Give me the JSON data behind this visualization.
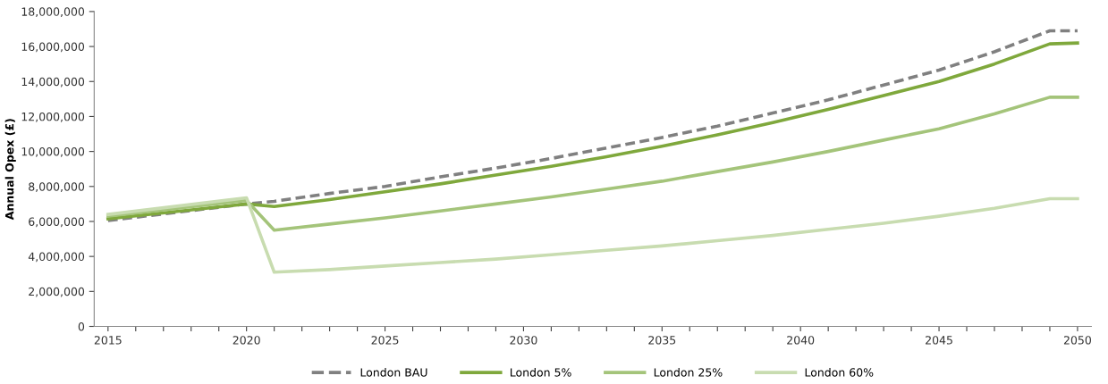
{
  "chart_data": {
    "type": "line",
    "ylabel": "Annual Opex (£)",
    "legend": "bottom",
    "grid": false,
    "marker": "none",
    "xlim": [
      2014.5,
      2050.5
    ],
    "xticks": [
      2015,
      {
        "value": 2016,
        "label": null
      },
      {
        "value": 2017,
        "label": null
      },
      {
        "value": 2018,
        "label": null
      },
      {
        "value": 2019,
        "label": null
      },
      2020,
      {
        "value": 2021,
        "label": null
      },
      {
        "value": 2022,
        "label": null
      },
      {
        "value": 2023,
        "label": null
      },
      {
        "value": 2024,
        "label": null
      },
      2025,
      {
        "value": 2026,
        "label": null
      },
      {
        "value": 2027,
        "label": null
      },
      {
        "value": 2028,
        "label": null
      },
      {
        "value": 2029,
        "label": null
      },
      2030,
      {
        "value": 2031,
        "label": null
      },
      {
        "value": 2032,
        "label": null
      },
      {
        "value": 2033,
        "label": null
      },
      {
        "value": 2034,
        "label": null
      },
      2035,
      {
        "value": 2036,
        "label": null
      },
      {
        "value": 2037,
        "label": null
      },
      {
        "value": 2038,
        "label": null
      },
      {
        "value": 2039,
        "label": null
      },
      2040,
      {
        "value": 2041,
        "label": null
      },
      {
        "value": 2042,
        "label": null
      },
      {
        "value": 2043,
        "label": null
      },
      {
        "value": 2044,
        "label": null
      },
      2045,
      {
        "value": 2046,
        "label": null
      },
      {
        "value": 2047,
        "label": null
      },
      {
        "value": 2048,
        "label": null
      },
      {
        "value": 2049,
        "label": null
      },
      2050
    ],
    "ylim": [
      0,
      18000000
    ],
    "yticks": [
      0,
      {
        "value": 2000000,
        "label": "2,000,000"
      },
      {
        "value": 4000000,
        "label": "4,000,000"
      },
      {
        "value": 6000000,
        "label": "6,000,000"
      },
      {
        "value": 8000000,
        "label": "8,000,000"
      },
      {
        "value": 10000000,
        "label": "10,000,000"
      },
      {
        "value": 12000000,
        "label": "12,000,000"
      },
      {
        "value": 14000000,
        "label": "14,000,000"
      },
      {
        "value": 16000000,
        "label": "16,000,000"
      },
      {
        "value": 18000000,
        "label": "18,000,000"
      }
    ],
    "x": [
      2015,
      2020,
      2021,
      2023,
      2025,
      2027,
      2029,
      2031,
      2033,
      2035,
      2037,
      2039,
      2041,
      2043,
      2045,
      2047,
      2049,
      2050
    ],
    "series": [
      {
        "name": "London BAU",
        "color": "#808080",
        "line_style": "dashed",
        "values": [
          6050000,
          7000000,
          7150000,
          7600000,
          8000000,
          8550000,
          9050000,
          9600000,
          10200000,
          10800000,
          11450000,
          12200000,
          12950000,
          13800000,
          14650000,
          15700000,
          16900000,
          16900000
        ]
      },
      {
        "name": "London 5%",
        "color": "#7fa83c",
        "line_style": "solid",
        "values": [
          6150000,
          7000000,
          6850000,
          7250000,
          7700000,
          8150000,
          8650000,
          9150000,
          9700000,
          10300000,
          10950000,
          11650000,
          12400000,
          13200000,
          14000000,
          15000000,
          16150000,
          16200000
        ]
      },
      {
        "name": "London 25%",
        "color": "#a4c47a",
        "line_style": "solid",
        "values": [
          6300000,
          7200000,
          5500000,
          5850000,
          6200000,
          6600000,
          7000000,
          7400000,
          7850000,
          8300000,
          8850000,
          9400000,
          10000000,
          10650000,
          11300000,
          12150000,
          13100000,
          13100000
        ]
      },
      {
        "name": "London 60%",
        "color": "#c8dcb0",
        "line_style": "solid",
        "values": [
          6400000,
          7350000,
          3100000,
          3250000,
          3450000,
          3650000,
          3850000,
          4100000,
          4350000,
          4600000,
          4900000,
          5200000,
          5550000,
          5900000,
          6300000,
          6750000,
          7300000,
          7300000
        ]
      }
    ]
  }
}
